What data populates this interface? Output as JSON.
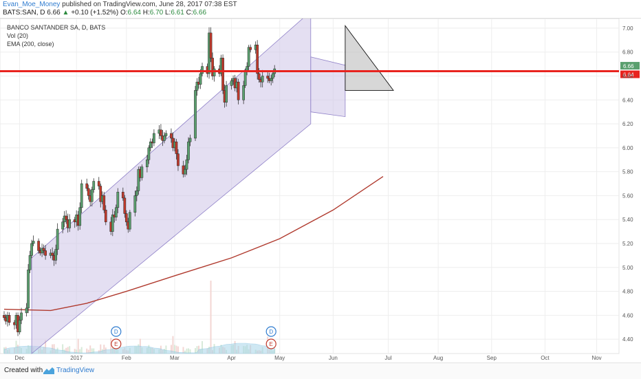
{
  "header": {
    "user": "Evan_Moe_Money",
    "published": "published on TradingView.com, June 28, 2017 07:38 EST",
    "symbol": "BATS:SAN, D",
    "last": "6.66",
    "change": "+0.10 (+1.52%)",
    "o_label": "O:",
    "o_value": "6.64",
    "h_label": "H:",
    "h_value": "6.70",
    "l_label": "L:",
    "l_value": "6.61",
    "c_label": "C:",
    "c_value": "6.66"
  },
  "legend": [
    "BANCO SANTANDER SA, D, BATS",
    "Vol (20)",
    "EMA (200, close)"
  ],
  "footer": {
    "created": "Created with",
    "brand": "TradingView"
  },
  "colors": {
    "up": "#5a9f6e",
    "down": "#c0392b",
    "ema": "#b03a2e",
    "hline": "#e8231e",
    "channel": "#c9bfe6",
    "triangle": "#bdbdbd",
    "volume": "#a9d6ea"
  },
  "events": [
    {
      "date": "2017-01-26",
      "top": "D",
      "bottom": "E"
    },
    {
      "date": "2017-04-26",
      "top": "D",
      "bottom": "E"
    }
  ],
  "chart_data": {
    "type": "candlestick",
    "x_labels": [
      "Dec",
      "2017",
      "Feb",
      "Mar",
      "Apr",
      "May",
      "Jun",
      "Jul",
      "Aug",
      "Sep",
      "Oct",
      "Nov"
    ],
    "y_ticks": [
      "7.00",
      "6.80",
      "6.60",
      "6.40",
      "6.20",
      "6.00",
      "5.80",
      "5.60",
      "5.40",
      "5.20",
      "5.00",
      "4.80",
      "4.60",
      "4.40"
    ],
    "ylim": [
      4.28,
      7.08
    ],
    "price_labels": [
      {
        "value": 6.66,
        "text": "6.66",
        "color": "#5a9f6e"
      },
      {
        "value": 6.64,
        "text": "6.64",
        "color": "#e8231e"
      }
    ],
    "horizontal_line": 6.64,
    "closes": [
      4.58,
      4.55,
      4.6,
      4.54,
      4.52,
      4.6,
      4.46,
      4.56,
      4.62,
      4.66,
      4.98,
      5.1,
      5.2,
      5.22,
      5.14,
      5.12,
      5.16,
      5.14,
      5.1,
      5.12,
      5.1,
      5.06,
      5.15,
      5.32,
      5.38,
      5.43,
      5.4,
      5.33,
      5.4,
      5.38,
      5.44,
      5.35,
      5.5,
      5.7,
      5.66,
      5.6,
      5.55,
      5.65,
      5.72,
      5.68,
      5.55,
      5.6,
      5.48,
      5.38,
      5.3,
      5.44,
      5.42,
      5.5,
      5.63,
      5.58,
      5.45,
      5.38,
      5.32,
      5.46,
      5.6,
      5.64,
      5.82,
      5.75,
      5.84,
      5.9,
      6.0,
      6.05,
      6.04,
      6.12,
      6.15,
      6.1,
      6.06,
      6.1,
      6.12,
      6.08,
      6.0,
      6.05,
      5.95,
      5.85,
      5.78,
      5.82,
      5.9,
      6.05,
      6.08,
      6.48,
      6.55,
      6.53,
      6.62,
      6.68,
      6.62,
      6.96,
      6.75,
      6.6,
      6.66,
      6.62,
      6.75,
      6.48,
      6.38,
      6.52,
      6.56,
      6.58,
      6.5,
      6.55,
      6.4,
      6.52,
      6.64,
      6.68,
      6.84,
      6.82,
      6.86,
      6.62,
      6.57,
      6.55,
      6.6,
      6.58,
      6.56,
      6.58,
      6.62,
      6.66
    ],
    "ema200": [
      {
        "date": "2016-11-22",
        "value": 4.65
      },
      {
        "date": "2016-12-19",
        "value": 4.64
      },
      {
        "date": "2017-01-09",
        "value": 4.7
      },
      {
        "date": "2017-02-01",
        "value": 4.8
      },
      {
        "date": "2017-03-01",
        "value": 4.93
      },
      {
        "date": "2017-04-03",
        "value": 5.08
      },
      {
        "date": "2017-05-01",
        "value": 5.24
      },
      {
        "date": "2017-06-01",
        "value": 5.48
      },
      {
        "date": "2017-06-30",
        "value": 5.76
      }
    ],
    "channels": [
      {
        "points": [
          [
            4.28,
            5.08
          ],
          [
            6.2,
            7.14
          ]
        ],
        "start": "2016-12-08",
        "end": "2017-05-19"
      },
      {
        "points": [
          [
            6.3,
            6.76
          ],
          [
            6.26,
            6.69
          ]
        ],
        "start": "2017-05-19",
        "end": "2017-06-08"
      }
    ],
    "triangle": [
      [
        6.72,
        7.02
      ],
      [
        6.48,
        6.48
      ]
    ]
  }
}
